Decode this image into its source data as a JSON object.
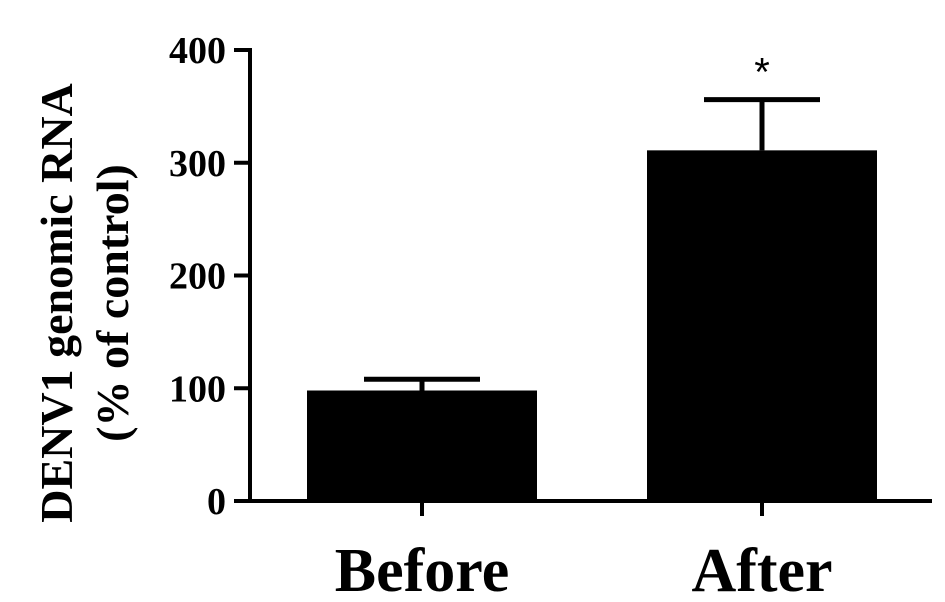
{
  "chart_data": {
    "type": "bar",
    "categories": [
      "Before",
      "After"
    ],
    "values": [
      98,
      311
    ],
    "errors": [
      10,
      45
    ],
    "significance": [
      "",
      "*"
    ],
    "ylabel_lines": [
      "DENV1 genomic RNA",
      "(% of control)"
    ],
    "xlabel": "",
    "ylim": [
      0,
      400
    ],
    "yticks": [
      0,
      100,
      200,
      300,
      400
    ],
    "grid": false,
    "bar_color": "#000000"
  }
}
